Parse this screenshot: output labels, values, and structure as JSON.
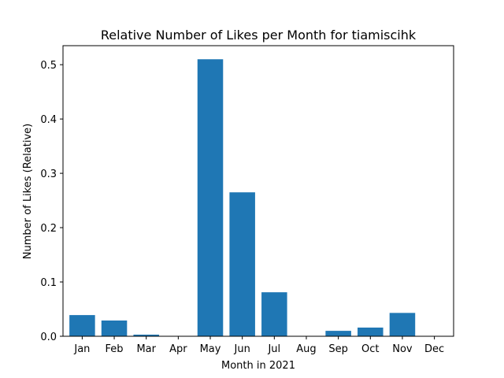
{
  "chart_data": {
    "type": "bar",
    "title": "Relative Number of Likes per Month for tiamiscihk",
    "xlabel": "Month in 2021",
    "ylabel": "Number of Likes (Relative)",
    "categories": [
      "Jan",
      "Feb",
      "Mar",
      "Apr",
      "May",
      "Jun",
      "Jul",
      "Aug",
      "Sep",
      "Oct",
      "Nov",
      "Dec"
    ],
    "values": [
      0.039,
      0.029,
      0.003,
      0.0,
      0.51,
      0.265,
      0.081,
      0.0,
      0.01,
      0.016,
      0.043,
      0.0
    ],
    "ylim": [
      0,
      0.535
    ],
    "yticks": [
      0.0,
      0.1,
      0.2,
      0.3,
      0.4,
      0.5
    ],
    "ytick_labels": [
      "0.0",
      "0.1",
      "0.2",
      "0.3",
      "0.4",
      "0.5"
    ],
    "grid": false,
    "bar_color": "#1f77b4"
  }
}
